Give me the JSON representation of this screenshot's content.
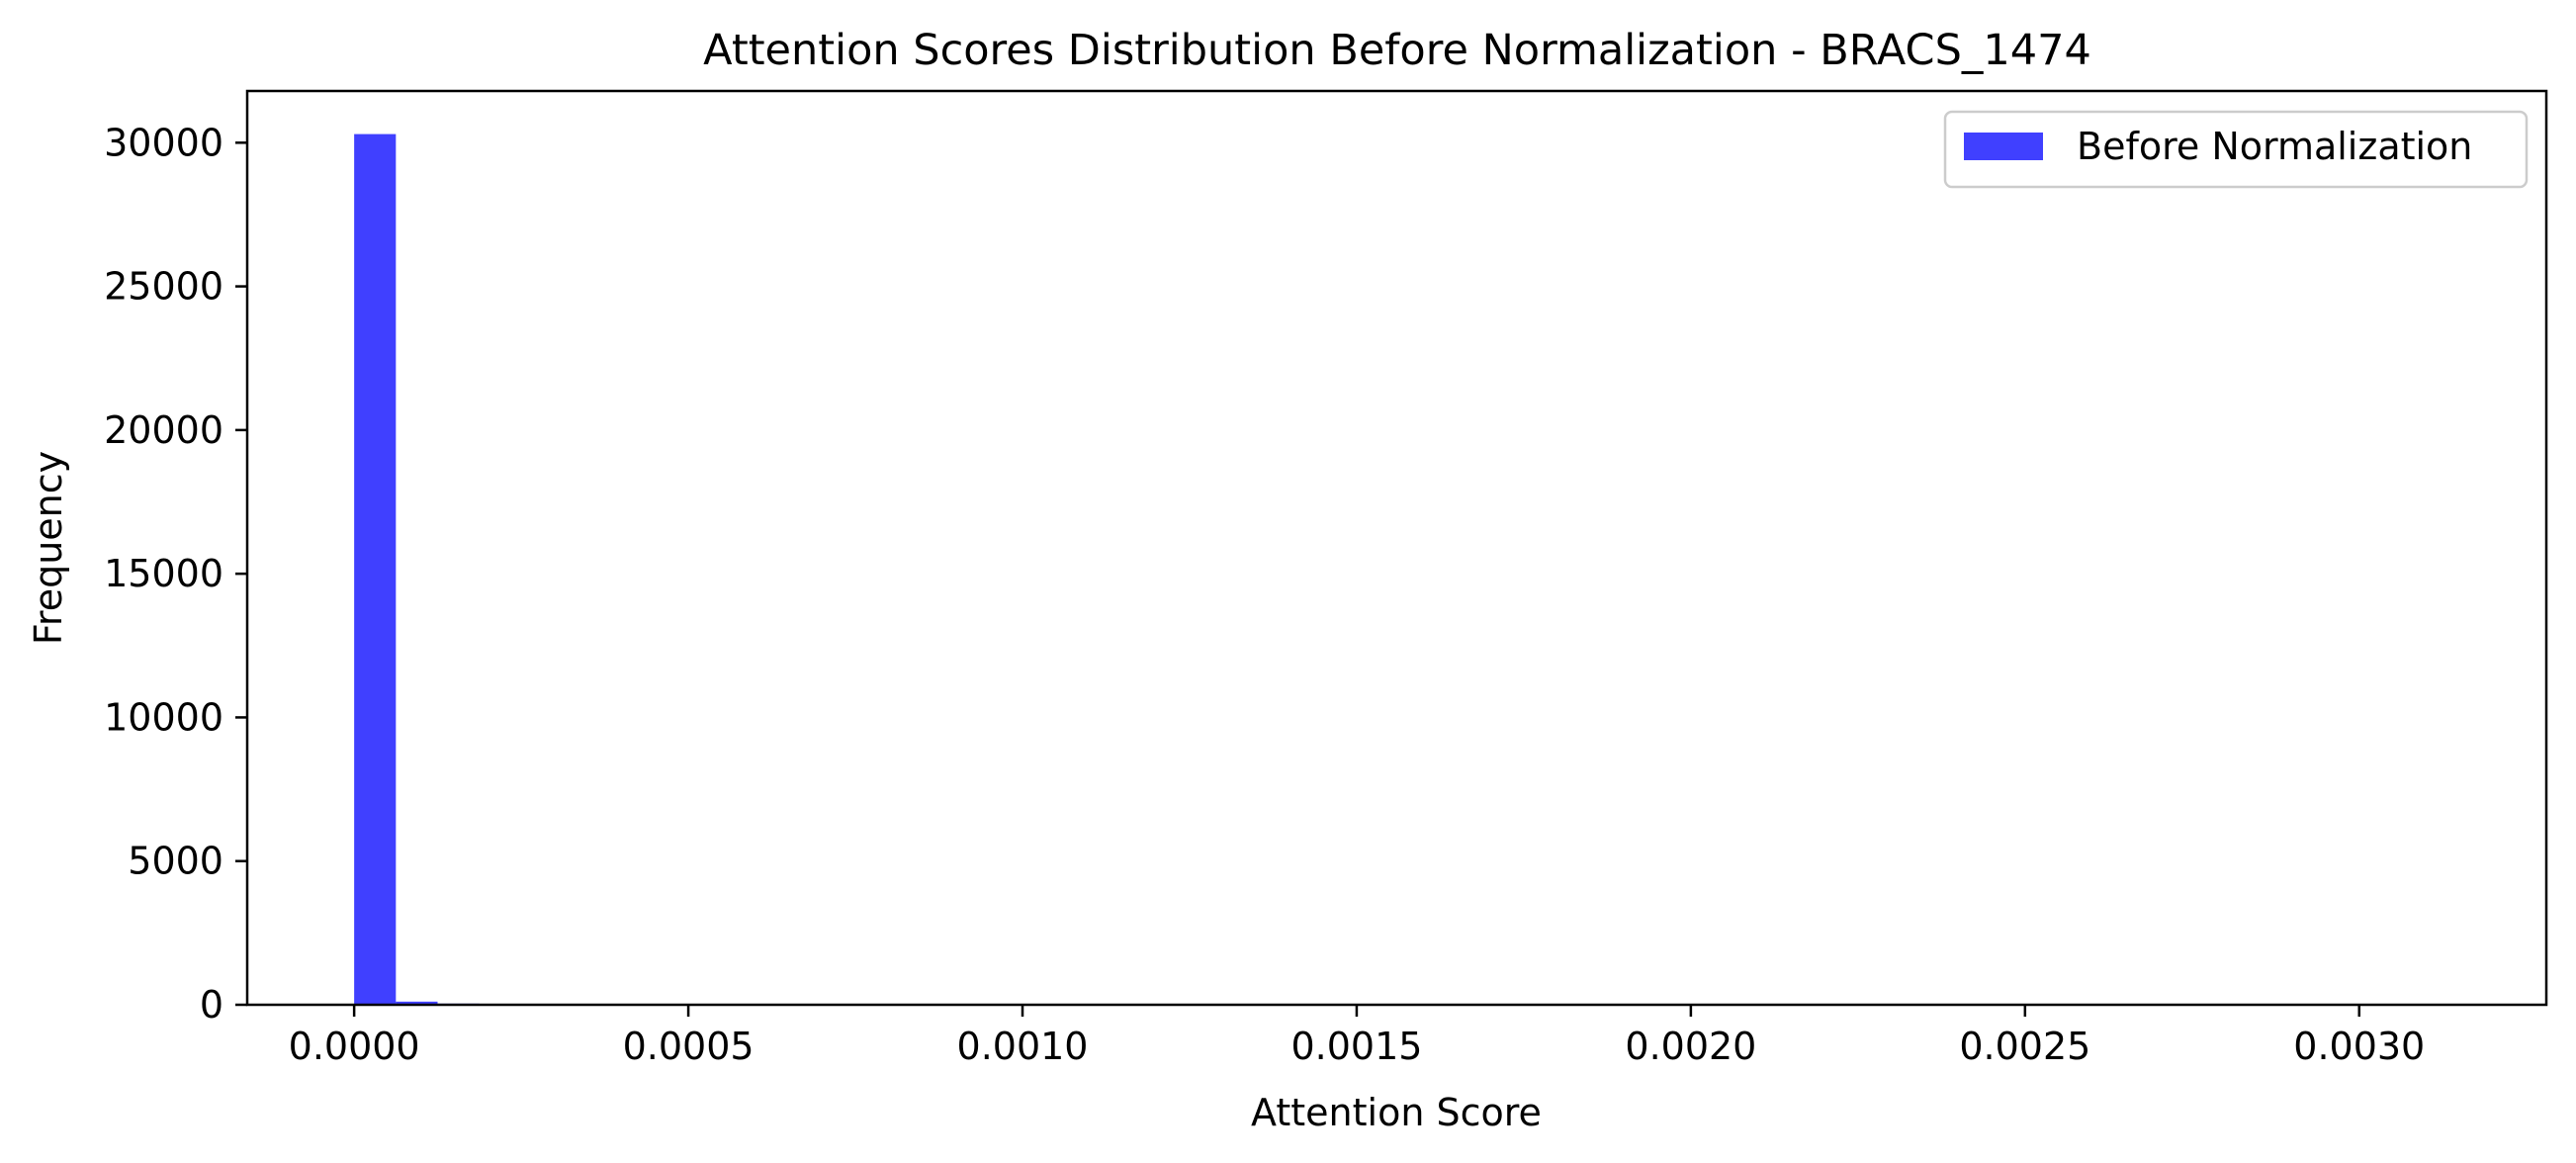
{
  "chart_data": {
    "type": "bar",
    "title": "Attention Scores Distribution Before Normalization - BRACS_1474",
    "xlabel": "Attention Score",
    "ylabel": "Frequency",
    "xlim": [
      -0.00016,
      0.00328
    ],
    "ylim": [
      0,
      31800
    ],
    "xticks": [
      {
        "value": 0.0,
        "label": "0.0000"
      },
      {
        "value": 0.0005,
        "label": "0.0005"
      },
      {
        "value": 0.001,
        "label": "0.0010"
      },
      {
        "value": 0.0015,
        "label": "0.0015"
      },
      {
        "value": 0.002,
        "label": "0.0020"
      },
      {
        "value": 0.0025,
        "label": "0.0025"
      },
      {
        "value": 0.003,
        "label": "0.0030"
      }
    ],
    "yticks": [
      {
        "value": 0,
        "label": "0"
      },
      {
        "value": 5000,
        "label": "5000"
      },
      {
        "value": 10000,
        "label": "10000"
      },
      {
        "value": 15000,
        "label": "15000"
      },
      {
        "value": 20000,
        "label": "20000"
      },
      {
        "value": 25000,
        "label": "25000"
      },
      {
        "value": 30000,
        "label": "30000"
      }
    ],
    "bin_width": 6.24e-05,
    "series": [
      {
        "name": "Before Normalization",
        "color": "#0000ff",
        "opacity": 0.75,
        "bin_starts": [
          0.0,
          6.24e-05,
          0.0001248
        ],
        "values": [
          30300,
          110,
          40
        ]
      }
    ],
    "legend": {
      "location": "upper right",
      "entries": [
        "Before Normalization"
      ]
    },
    "grid": false
  }
}
